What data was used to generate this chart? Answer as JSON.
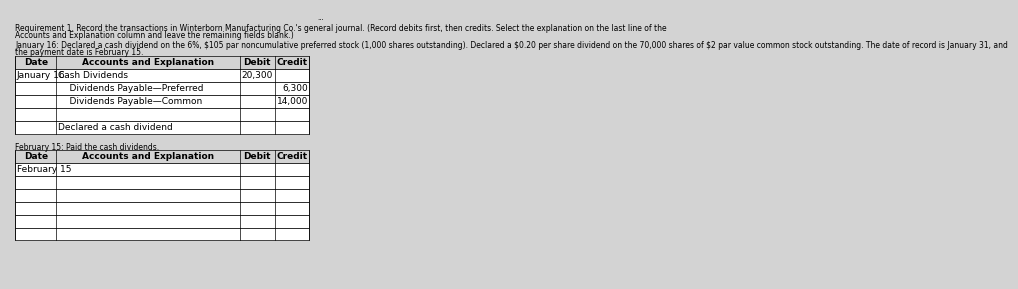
{
  "title_line1": "Requirement 1. Record the transactions in Winterborn Manufacturing Co.'s general journal. (Record debits first, then credits. Select the explanation on the last line of the",
  "title_line2": "Accounts and Explanation column and leave the remaining fields blank.)",
  "desc_line1": "January 16: Declared a cash dividend on the 6%, $105 par noncumulative preferred stock (1,000 shares outstanding). Declared a $0.20 per share dividend on the 70,000 shares of $2 par value common stock outstanding. The date of record is January 31, and",
  "desc_line2": "the payment date is February 15.",
  "table1_header": [
    "Date",
    "Accounts and Explanation",
    "Debit",
    "Credit"
  ],
  "table1_rows": [
    [
      "January 16",
      "Cash Dividends",
      "20,300",
      ""
    ],
    [
      "",
      "    Dividends Payable—Preferred",
      "",
      "6,300"
    ],
    [
      "",
      "    Dividends Payable—Common",
      "",
      "14,000"
    ],
    [
      "",
      "",
      "",
      ""
    ],
    [
      "",
      "Declared a cash dividend",
      "",
      ""
    ]
  ],
  "feb_label": "February 15: Paid the cash dividends.",
  "table2_header": [
    "Date",
    "Accounts and Explanation",
    "Debit",
    "Credit"
  ],
  "table2_rows": [
    [
      "February 15",
      "",
      "",
      ""
    ],
    [
      "",
      "",
      "",
      ""
    ],
    [
      "",
      "",
      "",
      ""
    ],
    [
      "",
      "",
      "",
      ""
    ],
    [
      "",
      "",
      "",
      ""
    ],
    [
      "",
      "",
      "",
      ""
    ]
  ],
  "bg_color": "#d3d3d3",
  "table_bg": "#ffffff",
  "header_bg": "#d3d3d3",
  "font_size": 6.5,
  "small_font_size": 5.5
}
